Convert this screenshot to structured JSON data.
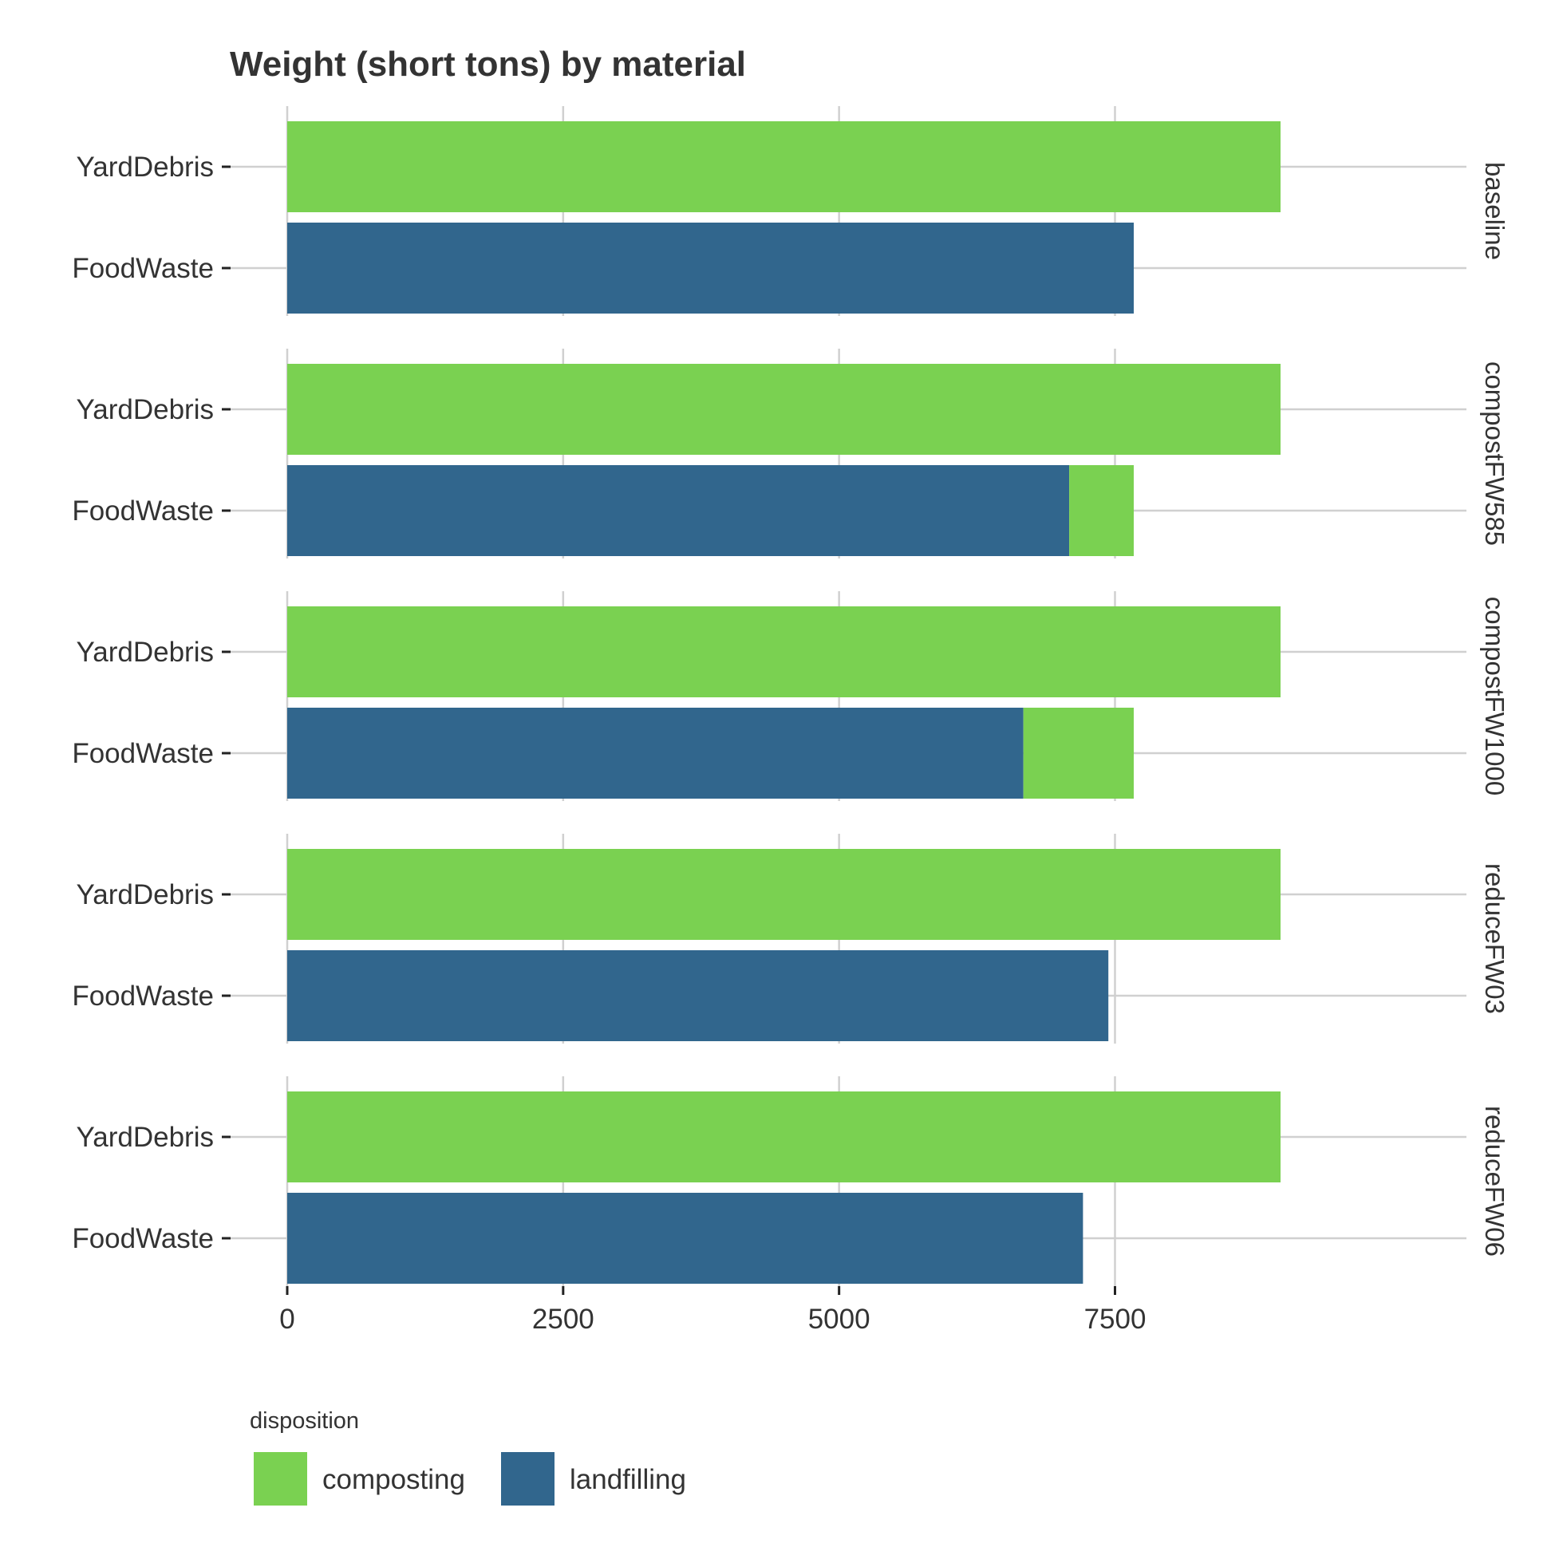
{
  "chart_data": {
    "type": "bar",
    "orientation": "horizontal",
    "stacked": true,
    "title": "Weight (short tons) by material",
    "xlabel": "",
    "ylabel": "",
    "xlim": [
      0,
      9400
    ],
    "x_ticks": [
      0,
      2500,
      5000,
      7500
    ],
    "categories": [
      "YardDebris",
      "FoodWaste"
    ],
    "facets": [
      {
        "label": "baseline",
        "bars": [
          {
            "category": "YardDebris",
            "segments": [
              {
                "disposition": "composting",
                "value": 9000
              }
            ]
          },
          {
            "category": "FoodWaste",
            "segments": [
              {
                "disposition": "landfilling",
                "value": 7670
              }
            ]
          }
        ]
      },
      {
        "label": "compostFW585",
        "bars": [
          {
            "category": "YardDebris",
            "segments": [
              {
                "disposition": "composting",
                "value": 9000
              }
            ]
          },
          {
            "category": "FoodWaste",
            "segments": [
              {
                "disposition": "landfilling",
                "value": 7085
              },
              {
                "disposition": "composting",
                "value": 585
              }
            ]
          }
        ]
      },
      {
        "label": "compostFW1000",
        "bars": [
          {
            "category": "YardDebris",
            "segments": [
              {
                "disposition": "composting",
                "value": 9000
              }
            ]
          },
          {
            "category": "FoodWaste",
            "segments": [
              {
                "disposition": "landfilling",
                "value": 6670
              },
              {
                "disposition": "composting",
                "value": 1000
              }
            ]
          }
        ]
      },
      {
        "label": "reduceFW03",
        "bars": [
          {
            "category": "YardDebris",
            "segments": [
              {
                "disposition": "composting",
                "value": 9000
              }
            ]
          },
          {
            "category": "FoodWaste",
            "segments": [
              {
                "disposition": "landfilling",
                "value": 7440
              }
            ]
          }
        ]
      },
      {
        "label": "reduceFW06",
        "bars": [
          {
            "category": "YardDebris",
            "segments": [
              {
                "disposition": "composting",
                "value": 9000
              }
            ]
          },
          {
            "category": "FoodWaste",
            "segments": [
              {
                "disposition": "landfilling",
                "value": 7210
              }
            ]
          }
        ]
      }
    ],
    "legend": {
      "title": "disposition",
      "position": "bottom-left",
      "entries": [
        {
          "name": "composting",
          "color": "#7AD151"
        },
        {
          "name": "landfilling",
          "color": "#31668D"
        }
      ]
    },
    "grid": true
  }
}
